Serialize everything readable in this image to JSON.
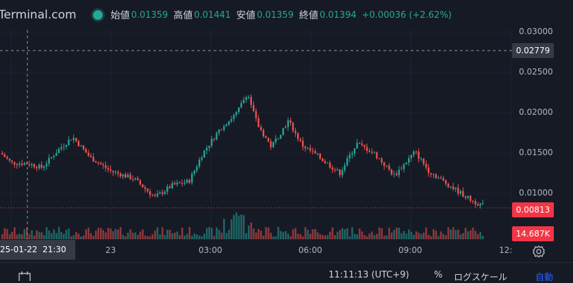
{
  "header": {
    "brand": "Terminal.com",
    "open_label": "始値",
    "open_value": "0.01359",
    "high_label": "高値",
    "high_value": "0.01441",
    "low_label": "安値",
    "low_value": "0.01359",
    "close_label": "終値",
    "close_value": "0.01394",
    "change": "+0.00036 (+2.62%)"
  },
  "price_axis": {
    "ticks": [
      "0.03000",
      "0.02500",
      "0.02000",
      "0.01500",
      "0.01000"
    ],
    "crosshair_price": "0.02779",
    "last_price": "0.00813",
    "volume_label": "14.687K"
  },
  "time_axis": {
    "crosshair_time": "25-01-22  21:30",
    "ticks": [
      "23",
      "03:00",
      "06:00",
      "09:00",
      "12:"
    ]
  },
  "footer": {
    "clock": "11:11:13 (UTC+9)",
    "percent": "%",
    "log_scale": "ログスケール",
    "auto": "自動"
  },
  "colors": {
    "up": "#26a69a",
    "down": "#ef5350",
    "background": "#161a25"
  }
}
